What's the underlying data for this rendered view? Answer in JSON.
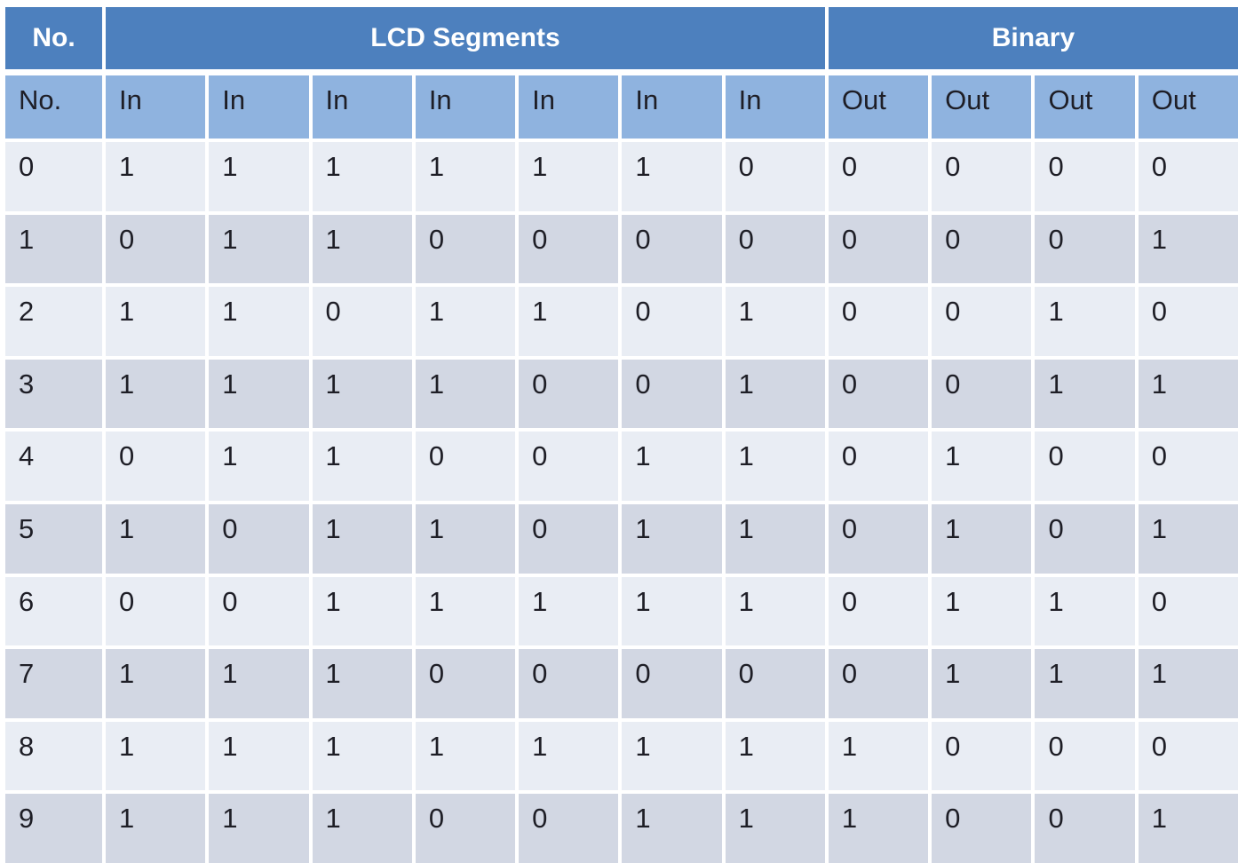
{
  "table": {
    "header_groups": [
      {
        "label": "No.",
        "span": 1
      },
      {
        "label": "LCD Segments",
        "span": 7
      },
      {
        "label": "Binary",
        "span": 4
      }
    ],
    "columns": [
      "No.",
      "In",
      "In",
      "In",
      "In",
      "In",
      "In",
      "In",
      "Out",
      "Out",
      "Out",
      "Out"
    ],
    "rows": [
      [
        "0",
        "1",
        "1",
        "1",
        "1",
        "1",
        "1",
        "0",
        "0",
        "0",
        "0",
        "0"
      ],
      [
        "1",
        "0",
        "1",
        "1",
        "0",
        "0",
        "0",
        "0",
        "0",
        "0",
        "0",
        "1"
      ],
      [
        "2",
        "1",
        "1",
        "0",
        "1",
        "1",
        "0",
        "1",
        "0",
        "0",
        "1",
        "0"
      ],
      [
        "3",
        "1",
        "1",
        "1",
        "1",
        "0",
        "0",
        "1",
        "0",
        "0",
        "1",
        "1"
      ],
      [
        "4",
        "0",
        "1",
        "1",
        "0",
        "0",
        "1",
        "1",
        "0",
        "1",
        "0",
        "0"
      ],
      [
        "5",
        "1",
        "0",
        "1",
        "1",
        "0",
        "1",
        "1",
        "0",
        "1",
        "0",
        "1"
      ],
      [
        "6",
        "0",
        "0",
        "1",
        "1",
        "1",
        "1",
        "1",
        "0",
        "1",
        "1",
        "0"
      ],
      [
        "7",
        "1",
        "1",
        "1",
        "0",
        "0",
        "0",
        "0",
        "0",
        "1",
        "1",
        "1"
      ],
      [
        "8",
        "1",
        "1",
        "1",
        "1",
        "1",
        "1",
        "1",
        "1",
        "0",
        "0",
        "0"
      ],
      [
        "9",
        "1",
        "1",
        "1",
        "0",
        "0",
        "1",
        "1",
        "1",
        "0",
        "0",
        "1"
      ]
    ]
  },
  "colors": {
    "header_primary_bg": "#4D80BE",
    "header_secondary_bg": "#8FB3DF",
    "band_light_bg": "#E9EDF4",
    "band_dark_bg": "#D2D7E3",
    "gridline": "#FFFFFF",
    "header_primary_text": "#FFFFFF",
    "body_text": "#1E1E26"
  }
}
